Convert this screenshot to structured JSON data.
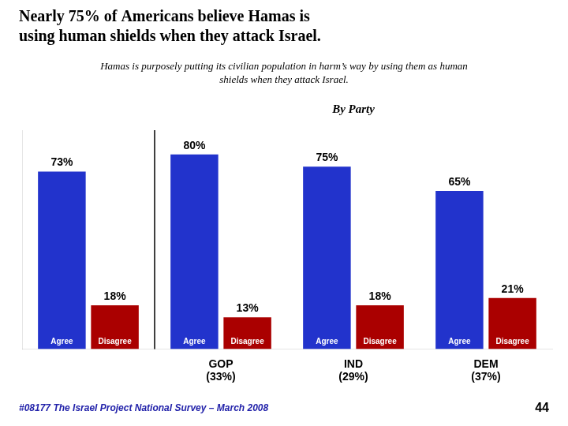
{
  "chart_data": {
    "type": "bar",
    "title": "Nearly 75% of Americans believe Hamas is\nusing human shields when they attack Israel.",
    "subtitle": "Hamas is purposely putting its civilian population in harm’s way by using them as human\nshields when they attack Israel.",
    "annotations": [
      "By Party",
      "#08177 The Israel Project National Survey – March 2008",
      "44"
    ],
    "categories": [
      null,
      "GOP\n(33%)",
      "IND\n(29%)",
      "DEM\n(37%)"
    ],
    "series": [
      {
        "name": "Agree",
        "color": "#2233cc",
        "values": [
          73,
          80,
          75,
          65
        ],
        "value_labels": [
          "73%",
          "80%",
          "75%",
          "65%"
        ]
      },
      {
        "name": "Disagree",
        "color": "#aa0000",
        "values": [
          18,
          13,
          18,
          21
        ],
        "value_labels": [
          "18%",
          "13%",
          "18%",
          "21%"
        ]
      }
    ],
    "ylim": [
      0,
      90
    ],
    "data_labels": true,
    "tick_labels": "x",
    "grid": false
  }
}
